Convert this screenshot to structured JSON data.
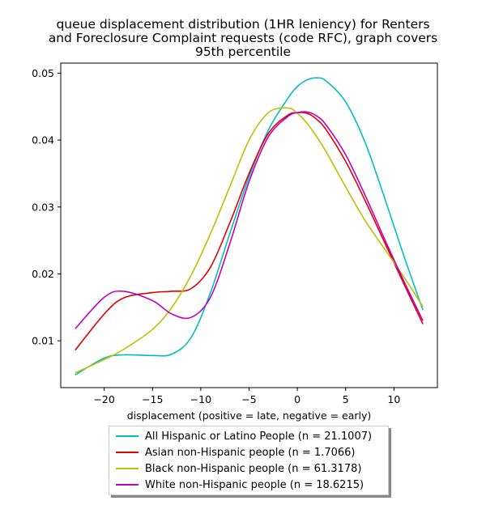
{
  "chart_data": {
    "type": "line",
    "title_lines": [
      "queue displacement distribution (1HR leniency) for Renters",
      "and Foreclosure Complaint  requests (code RFC), graph covers",
      "95th percentile"
    ],
    "xlabel": "displacement (positive = late, negative = early)",
    "ylabel": "",
    "xlim": [
      -24.5,
      14.5
    ],
    "ylim": [
      0.003,
      0.0515
    ],
    "xticks": [
      -20,
      -15,
      -10,
      -5,
      0,
      5,
      10
    ],
    "xtick_labels": [
      "−20",
      "−15",
      "−10",
      "−5",
      "0",
      "5",
      "10"
    ],
    "yticks": [
      0.01,
      0.02,
      0.03,
      0.04,
      0.05
    ],
    "ytick_labels": [
      "0.01",
      "0.02",
      "0.03",
      "0.04",
      "0.05"
    ],
    "grid": false,
    "legend_position": "below",
    "x": [
      -23,
      -20,
      -18,
      -15,
      -13,
      -11,
      -9,
      -7,
      -5,
      -3,
      -1,
      0,
      1,
      2,
      3,
      5,
      7,
      9,
      11,
      13
    ],
    "series": [
      {
        "name": "All Hispanic or Latino People (n = 21.1007)",
        "color": "#00bfbf",
        "values": [
          0.0049,
          0.0074,
          0.0079,
          0.0078,
          0.008,
          0.0105,
          0.0172,
          0.026,
          0.0345,
          0.0415,
          0.0462,
          0.048,
          0.049,
          0.0493,
          0.0488,
          0.0457,
          0.0397,
          0.0315,
          0.0228,
          0.0146
        ]
      },
      {
        "name": "Asian non-Hispanic people (n = 1.7066)",
        "color": "#e00000",
        "values": [
          0.0086,
          0.014,
          0.0164,
          0.0172,
          0.0174,
          0.0178,
          0.021,
          0.0276,
          0.035,
          0.041,
          0.0437,
          0.0441,
          0.044,
          0.0431,
          0.0415,
          0.0368,
          0.031,
          0.0248,
          0.0186,
          0.0125
        ]
      },
      {
        "name": "Black non-Hispanic people (n = 61.3178)",
        "color": "#bfbf00",
        "values": [
          0.0052,
          0.0072,
          0.0087,
          0.0117,
          0.015,
          0.0198,
          0.026,
          0.033,
          0.04,
          0.0441,
          0.0448,
          0.044,
          0.0425,
          0.0405,
          0.0382,
          0.033,
          0.028,
          0.0238,
          0.0196,
          0.0151
        ]
      },
      {
        "name": "White non-Hispanic people (n = 18.6215)",
        "color": "#bf00bf",
        "values": [
          0.0118,
          0.0165,
          0.0174,
          0.016,
          0.014,
          0.0135,
          0.0165,
          0.0245,
          0.0338,
          0.0405,
          0.0435,
          0.0441,
          0.0442,
          0.0436,
          0.0422,
          0.0378,
          0.0318,
          0.0253,
          0.019,
          0.013
        ]
      }
    ]
  }
}
